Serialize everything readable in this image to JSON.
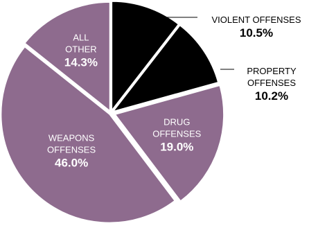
{
  "chart_data": {
    "type": "pie",
    "title": "",
    "legend": "none",
    "slices": [
      {
        "label_lines": [
          "VIOLENT OFFENSES"
        ],
        "value_label": "10.5%",
        "value": 10.5,
        "color": "#000000",
        "text_color": "#000000"
      },
      {
        "label_lines": [
          "PROPERTY",
          "OFFENSES"
        ],
        "value_label": "10.2%",
        "value": 10.2,
        "color": "#000000",
        "text_color": "#000000"
      },
      {
        "label_lines": [
          "DRUG",
          "OFFENSES"
        ],
        "value_label": "19.0%",
        "value": 19.0,
        "color": "#8e6b8e",
        "text_color": "#ffffff"
      },
      {
        "label_lines": [
          "WEAPONS",
          "OFFENSES"
        ],
        "value_label": "46.0%",
        "value": 46.0,
        "color": "#8e6b8e",
        "text_color": "#ffffff"
      },
      {
        "label_lines": [
          "ALL",
          "OTHER"
        ],
        "value_label": "14.3%",
        "value": 14.3,
        "color": "#8e6b8e",
        "text_color": "#ffffff"
      }
    ]
  }
}
